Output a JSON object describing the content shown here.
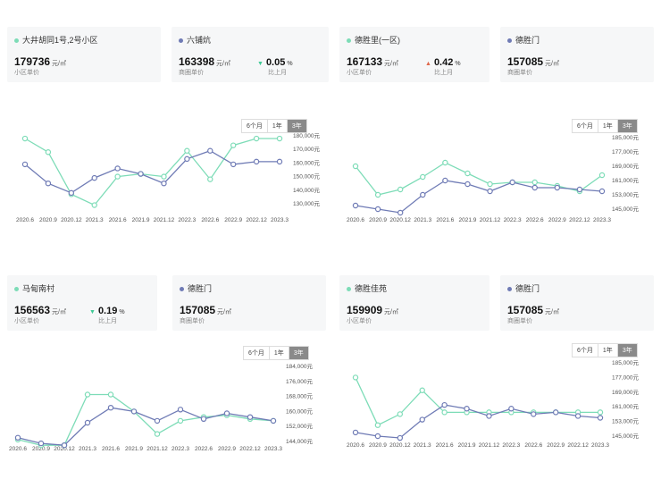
{
  "colors": {
    "community": "#7ddcb7",
    "business": "#6f7bb5",
    "up": "#e0684b",
    "down": "#3ec995"
  },
  "ui": {
    "periods": [
      "6个月",
      "1年",
      "3年"
    ],
    "active_period": "3年",
    "price_unit": "元/㎡",
    "community_price_label": "小区单价",
    "business_price_label": "商圈单价",
    "change_label": "比上月",
    "percent_sign": "%"
  },
  "panels": [
    {
      "community": {
        "name": "大井胡同1号,2号小区",
        "price": "179736"
      },
      "change": null,
      "business": {
        "name": "六铺炕",
        "price": "163398"
      },
      "business_change": {
        "direction": "down",
        "value": "0.05"
      }
    },
    {
      "community": {
        "name": "德胜里(一区)",
        "price": "167133"
      },
      "change": {
        "direction": "up",
        "value": "0.42"
      },
      "business": {
        "name": "德胜门",
        "price": "157085"
      },
      "business_change": null
    },
    {
      "community": {
        "name": "马甸南村",
        "price": "156563"
      },
      "change": {
        "direction": "down",
        "value": "0.19"
      },
      "business": {
        "name": "德胜门",
        "price": "157085"
      },
      "business_change": null
    },
    {
      "community": {
        "name": "德胜佳苑",
        "price": "159909"
      },
      "change": null,
      "business": {
        "name": "德胜门",
        "price": "157085"
      },
      "business_change": null
    }
  ],
  "chart_data": [
    {
      "type": "line",
      "x_ticks": [
        "2020.6",
        "2020.9",
        "2020.12",
        "2021.3",
        "2021.6",
        "2021.9",
        "2021.12",
        "2022.3",
        "2022.6",
        "2022.9",
        "2022.12",
        "2023.3"
      ],
      "y_ticks": [
        "180,000元",
        "170,000元",
        "160,000元",
        "150,000元",
        "140,000元",
        "130,000元"
      ],
      "ylim": [
        130000,
        180000
      ],
      "series": [
        {
          "name": "大井胡同1号,2号小区",
          "role": "community",
          "values": [
            178000,
            168000,
            137000,
            129000,
            150000,
            152000,
            150000,
            169000,
            148000,
            173000,
            178000,
            178000
          ]
        },
        {
          "name": "六铺炕",
          "role": "business",
          "values": [
            159000,
            145000,
            138000,
            149000,
            156000,
            152000,
            145000,
            163000,
            169000,
            159000,
            161000,
            161000
          ]
        }
      ]
    },
    {
      "type": "line",
      "x_ticks": [
        "2020.6",
        "2020.9",
        "2020.12",
        "2021.3",
        "2021.6",
        "2021.9",
        "2021.12",
        "2022.3",
        "2022.6",
        "2022.9",
        "2022.12",
        "2023.3"
      ],
      "y_ticks": [
        "185,000元",
        "177,000元",
        "169,000元",
        "161,000元",
        "153,000元",
        "145,000元"
      ],
      "ylim": [
        145000,
        185000
      ],
      "series": [
        {
          "name": "德胜里(一区)",
          "role": "community",
          "values": [
            169000,
            153000,
            156000,
            163000,
            171000,
            165000,
            159000,
            160000,
            160000,
            158000,
            155000,
            164000
          ]
        },
        {
          "name": "德胜门",
          "role": "business",
          "values": [
            147000,
            145000,
            143000,
            153000,
            161000,
            159000,
            155000,
            160000,
            157000,
            157000,
            156000,
            155000
          ]
        }
      ]
    },
    {
      "type": "line",
      "x_ticks": [
        "2020.6",
        "2020.9",
        "2020.12",
        "2021.3",
        "2021.6",
        "2021.9",
        "2021.12",
        "2022.3",
        "2022.6",
        "2022.9",
        "2022.12",
        "2023.3"
      ],
      "y_ticks": [
        "184,000元",
        "176,000元",
        "168,000元",
        "160,000元",
        "152,000元",
        "144,000元"
      ],
      "ylim": [
        144000,
        184000
      ],
      "series": [
        {
          "name": "马甸南村",
          "role": "community",
          "values": [
            145000,
            142000,
            142000,
            169000,
            169000,
            160000,
            148000,
            155000,
            157000,
            158000,
            156000,
            155000
          ]
        },
        {
          "name": "德胜门",
          "role": "business",
          "values": [
            146000,
            143000,
            142000,
            154000,
            162000,
            160000,
            155000,
            161000,
            156000,
            159000,
            157000,
            155000
          ]
        }
      ]
    },
    {
      "type": "line",
      "x_ticks": [
        "2020.6",
        "2020.9",
        "2020.12",
        "2021.3",
        "2021.6",
        "2021.9",
        "2021.12",
        "2022.3",
        "2022.6",
        "2022.9",
        "2022.12",
        "2023.3"
      ],
      "y_ticks": [
        "185,000元",
        "177,000元",
        "169,000元",
        "161,000元",
        "153,000元",
        "145,000元"
      ],
      "ylim": [
        145000,
        185000
      ],
      "series": [
        {
          "name": "德胜佳苑",
          "role": "community",
          "values": [
            177000,
            151000,
            157000,
            170000,
            158000,
            158000,
            158000,
            158000,
            158000,
            158000,
            158000,
            158000
          ]
        },
        {
          "name": "德胜门",
          "role": "business",
          "values": [
            147000,
            145000,
            144000,
            154000,
            162000,
            160000,
            156000,
            160000,
            157000,
            158000,
            156000,
            155000
          ]
        }
      ]
    }
  ]
}
